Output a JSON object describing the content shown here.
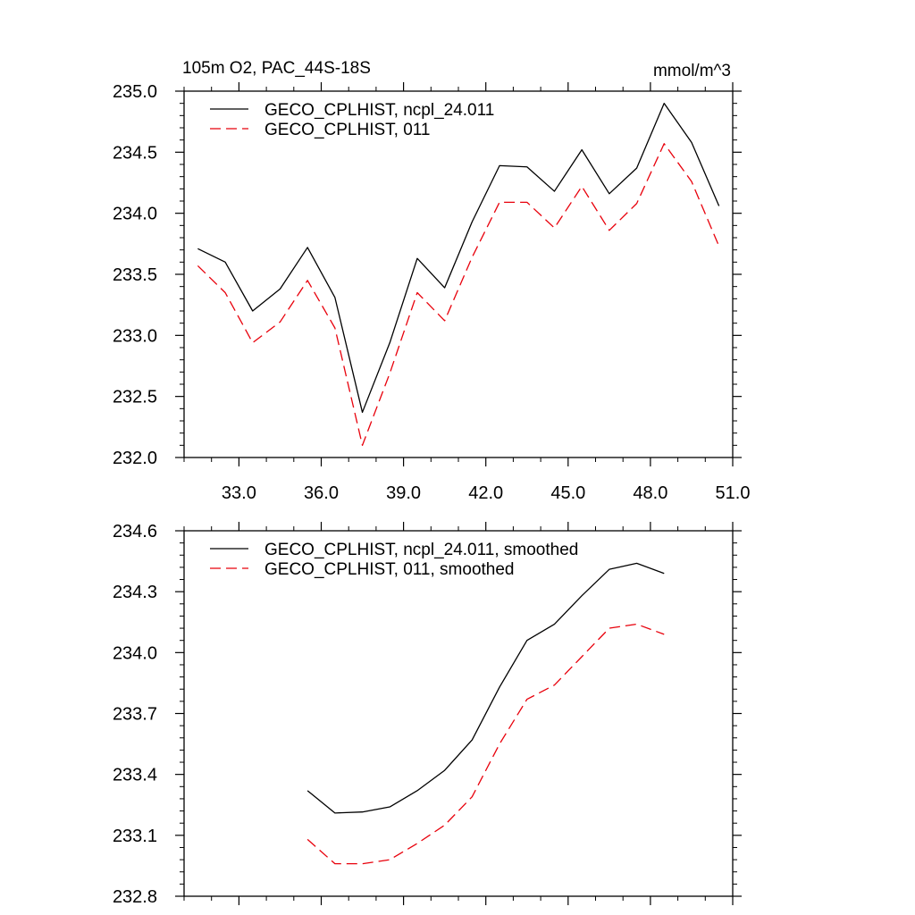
{
  "chart_data": [
    {
      "type": "line",
      "title": "105m O2, PAC_44S-18S",
      "units": "mmol/m^3",
      "xlabel": "",
      "ylabel": "",
      "xlim": [
        31.0,
        51.0
      ],
      "ylim": [
        232.0,
        235.0
      ],
      "xticks": [
        33.0,
        36.0,
        39.0,
        42.0,
        45.0,
        48.0,
        51.0
      ],
      "xtick_labels": [
        "33.0",
        "36.0",
        "39.0",
        "42.0",
        "45.0",
        "48.0",
        "51.0"
      ],
      "yticks": [
        232.0,
        232.5,
        233.0,
        233.5,
        234.0,
        234.5,
        235.0
      ],
      "ytick_labels": [
        "232.0",
        "232.5",
        "233.0",
        "233.5",
        "234.0",
        "234.5",
        "235.0"
      ],
      "legend_position": "top-left",
      "series": [
        {
          "name": "GECO_CPLHIST, ncpl_24.011",
          "color": "#000000",
          "style": "solid",
          "x": [
            31.5,
            32.5,
            33.5,
            34.5,
            35.5,
            36.5,
            37.5,
            38.5,
            39.5,
            40.5,
            41.5,
            42.5,
            43.5,
            44.5,
            45.5,
            46.5,
            47.5,
            48.5,
            49.5,
            50.5
          ],
          "values": [
            233.71,
            233.6,
            233.2,
            233.38,
            233.72,
            233.31,
            232.37,
            232.94,
            233.63,
            233.39,
            233.93,
            234.39,
            234.38,
            234.18,
            234.52,
            234.16,
            234.37,
            234.9,
            234.58,
            234.06
          ]
        },
        {
          "name": "GECO_CPLHIST, 011",
          "color": "#e8000b",
          "style": "dashed",
          "x": [
            31.5,
            32.5,
            33.5,
            34.5,
            35.5,
            36.5,
            37.5,
            38.5,
            39.5,
            40.5,
            41.5,
            42.5,
            43.5,
            44.5,
            45.5,
            46.5,
            47.5,
            48.5,
            49.5,
            50.5
          ],
          "values": [
            233.57,
            233.35,
            232.94,
            233.11,
            233.45,
            233.06,
            232.1,
            232.69,
            233.35,
            233.12,
            233.64,
            234.09,
            234.09,
            233.88,
            234.22,
            233.86,
            234.08,
            234.57,
            234.26,
            233.73
          ]
        }
      ]
    },
    {
      "type": "line",
      "title": "",
      "xlabel": "",
      "ylabel": "",
      "xlim": [
        31.0,
        51.0
      ],
      "ylim": [
        232.8,
        234.6
      ],
      "xticks": [
        33.0,
        36.0,
        39.0,
        42.0,
        45.0,
        48.0,
        51.0
      ],
      "yticks": [
        232.8,
        233.1,
        233.4,
        233.7,
        234.0,
        234.3,
        234.6
      ],
      "ytick_labels": [
        "232.8",
        "233.1",
        "233.4",
        "233.7",
        "234.0",
        "234.3",
        "234.6"
      ],
      "legend_position": "top-left",
      "series": [
        {
          "name": "GECO_CPLHIST, ncpl_24.011, smoothed",
          "color": "#000000",
          "style": "solid",
          "x": [
            35.5,
            36.5,
            37.5,
            38.5,
            39.5,
            40.5,
            41.5,
            42.5,
            43.5,
            44.5,
            45.5,
            46.5,
            47.5,
            48.5,
            49.5
          ],
          "values": [
            233.32,
            233.21,
            233.215,
            233.24,
            233.32,
            233.42,
            233.57,
            233.83,
            234.06,
            234.14,
            234.28,
            234.41,
            234.44,
            234.39,
            null
          ]
        },
        {
          "name": "GECO_CPLHIST, 011, smoothed",
          "color": "#e8000b",
          "style": "dashed",
          "x": [
            35.5,
            36.5,
            37.5,
            38.5,
            39.5,
            40.5,
            41.5,
            42.5,
            43.5,
            44.5,
            45.5,
            46.5,
            47.5,
            48.5,
            49.5
          ],
          "values": [
            233.08,
            232.96,
            232.96,
            232.98,
            233.06,
            233.15,
            233.29,
            233.55,
            233.77,
            233.84,
            233.98,
            234.12,
            234.14,
            234.09,
            null
          ]
        }
      ]
    }
  ]
}
